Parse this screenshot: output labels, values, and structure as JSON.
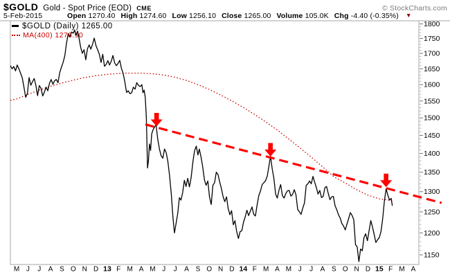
{
  "header": {
    "symbol": "$GOLD",
    "description": "Gold - Spot Price (EOD)",
    "exchange": "CME",
    "watermark": "© StockCharts.com",
    "date": "5-Feb-2015",
    "quote": [
      {
        "label": "Open",
        "value": "1270.40"
      },
      {
        "label": "High",
        "value": "1274.60"
      },
      {
        "label": "Low",
        "value": "1256.10"
      },
      {
        "label": "Close",
        "value": "1265.00"
      },
      {
        "label": "Volume",
        "value": "105.0K"
      },
      {
        "label": "Chg",
        "value": "-4.40 (-0.35%)"
      }
    ],
    "chg_direction_icon": "down-triangle",
    "chg_triangle_glyph": "▼",
    "chg_triangle_color": "#8b0000"
  },
  "legend": {
    "price_label": "$GOLD (Daily)",
    "price_value": "1265.00",
    "ma_label": "MA(400)",
    "ma_value": "1276.90"
  },
  "colors": {
    "price_line": "#000000",
    "ma_line": "#cc0000",
    "trendline": "#fe0000",
    "arrow": "#fe0000",
    "frame": "#a6a6a6",
    "tick": "#999999",
    "axis_text": "#000000",
    "watermark": "#7b7b7b"
  },
  "chart_data": {
    "type": "line",
    "title": "$GOLD Gold - Spot Price (EOD) CME",
    "y_scale": "log",
    "grid": "off",
    "legend_position": "top-left-inside",
    "y_axis": {
      "side": "right",
      "min": 1150,
      "max": 1800,
      "tick_step": 50,
      "ticks": [
        1800,
        1750,
        1700,
        1650,
        1600,
        1550,
        1500,
        1450,
        1400,
        1350,
        1300,
        1250,
        1200,
        1150
      ],
      "minor_tick_step": 10
    },
    "x_axis": {
      "start": "May 2012",
      "end": "Apr 2015",
      "months": [
        "M",
        "J",
        "J",
        "A",
        "S",
        "O",
        "N",
        "D",
        "13",
        "F",
        "M",
        "A",
        "M",
        "J",
        "J",
        "A",
        "S",
        "O",
        "N",
        "D",
        "14",
        "F",
        "M",
        "A",
        "M",
        "J",
        "J",
        "A",
        "S",
        "O",
        "N",
        "D",
        "15",
        "F",
        "M",
        "A"
      ],
      "year_indices": [
        8,
        20,
        32
      ]
    },
    "series": [
      {
        "name": "$GOLD (Daily)",
        "last": 1265.0,
        "color": "#000000",
        "style": "solid",
        "points": [
          [
            -0.55,
            1660
          ],
          [
            -0.4,
            1650
          ],
          [
            -0.25,
            1657
          ],
          [
            -0.1,
            1643
          ],
          [
            0.05,
            1662
          ],
          [
            0.2,
            1650
          ],
          [
            0.35,
            1636
          ],
          [
            0.5,
            1621
          ],
          [
            0.65,
            1592
          ],
          [
            0.8,
            1561
          ],
          [
            0.95,
            1573
          ],
          [
            1.1,
            1622
          ],
          [
            1.25,
            1598
          ],
          [
            1.4,
            1609
          ],
          [
            1.55,
            1619
          ],
          [
            1.7,
            1598
          ],
          [
            1.85,
            1566
          ],
          [
            2.0,
            1597
          ],
          [
            2.15,
            1589
          ],
          [
            2.3,
            1565
          ],
          [
            2.45,
            1577
          ],
          [
            2.6,
            1592
          ],
          [
            2.75,
            1581
          ],
          [
            2.9,
            1604
          ],
          [
            3.05,
            1616
          ],
          [
            3.2,
            1601
          ],
          [
            3.35,
            1612
          ],
          [
            3.5,
            1616
          ],
          [
            3.65,
            1606
          ],
          [
            3.8,
            1637
          ],
          [
            3.95,
            1655
          ],
          [
            4.1,
            1670
          ],
          [
            4.25,
            1692
          ],
          [
            4.4,
            1733
          ],
          [
            4.55,
            1766
          ],
          [
            4.7,
            1755
          ],
          [
            4.85,
            1772
          ],
          [
            5.0,
            1768
          ],
          [
            5.12,
            1779
          ],
          [
            5.25,
            1760
          ],
          [
            5.38,
            1775
          ],
          [
            5.5,
            1753
          ],
          [
            5.65,
            1720
          ],
          [
            5.8,
            1700
          ],
          [
            5.95,
            1712
          ],
          [
            6.1,
            1679
          ],
          [
            6.25,
            1715
          ],
          [
            6.4,
            1728
          ],
          [
            6.55,
            1714
          ],
          [
            6.7,
            1730
          ],
          [
            6.85,
            1751
          ],
          [
            7.0,
            1726
          ],
          [
            7.15,
            1712
          ],
          [
            7.3,
            1697
          ],
          [
            7.45,
            1670
          ],
          [
            7.6,
            1697
          ],
          [
            7.75,
            1658
          ],
          [
            7.9,
            1664
          ],
          [
            8.05,
            1676
          ],
          [
            8.2,
            1662
          ],
          [
            8.35,
            1674
          ],
          [
            8.5,
            1693
          ],
          [
            8.65,
            1669
          ],
          [
            8.8,
            1660
          ],
          [
            8.95,
            1667
          ],
          [
            9.1,
            1677
          ],
          [
            9.25,
            1651
          ],
          [
            9.4,
            1635
          ],
          [
            9.55,
            1609
          ],
          [
            9.7,
            1576
          ],
          [
            9.85,
            1581
          ],
          [
            10.0,
            1572
          ],
          [
            10.15,
            1575
          ],
          [
            10.3,
            1592
          ],
          [
            10.45,
            1586
          ],
          [
            10.6,
            1606
          ],
          [
            10.75,
            1598
          ],
          [
            10.9,
            1594
          ],
          [
            11.05,
            1600
          ],
          [
            11.15,
            1575
          ],
          [
            11.25,
            1583
          ],
          [
            11.35,
            1561
          ],
          [
            11.45,
            1501
          ],
          [
            11.55,
            1361
          ],
          [
            11.63,
            1380
          ],
          [
            11.72,
            1426
          ],
          [
            11.82,
            1408
          ],
          [
            11.92,
            1454
          ],
          [
            12.05,
            1467
          ],
          [
            12.18,
            1474
          ],
          [
            12.3,
            1480
          ],
          [
            12.45,
            1440
          ],
          [
            12.6,
            1412
          ],
          [
            12.75,
            1394
          ],
          [
            12.9,
            1387
          ],
          [
            13.05,
            1412
          ],
          [
            13.2,
            1402
          ],
          [
            13.35,
            1378
          ],
          [
            13.5,
            1340
          ],
          [
            13.65,
            1292
          ],
          [
            13.8,
            1235
          ],
          [
            13.93,
            1200
          ],
          [
            14.08,
            1224
          ],
          [
            14.22,
            1247
          ],
          [
            14.36,
            1285
          ],
          [
            14.5,
            1279
          ],
          [
            14.65,
            1297
          ],
          [
            14.8,
            1329
          ],
          [
            14.95,
            1313
          ],
          [
            15.1,
            1334
          ],
          [
            15.25,
            1312
          ],
          [
            15.4,
            1336
          ],
          [
            15.55,
            1377
          ],
          [
            15.7,
            1407
          ],
          [
            15.85,
            1420
          ],
          [
            16.0,
            1396
          ],
          [
            16.12,
            1412
          ],
          [
            16.27,
            1391
          ],
          [
            16.42,
            1364
          ],
          [
            16.57,
            1330
          ],
          [
            16.72,
            1316
          ],
          [
            16.87,
            1327
          ],
          [
            17.02,
            1287
          ],
          [
            17.17,
            1268
          ],
          [
            17.32,
            1316
          ],
          [
            17.47,
            1323
          ],
          [
            17.62,
            1350
          ],
          [
            17.77,
            1344
          ],
          [
            17.92,
            1324
          ],
          [
            18.07,
            1308
          ],
          [
            18.22,
            1287
          ],
          [
            18.37,
            1275
          ],
          [
            18.52,
            1287
          ],
          [
            18.67,
            1258
          ],
          [
            18.82,
            1243
          ],
          [
            18.97,
            1253
          ],
          [
            19.12,
            1219
          ],
          [
            19.27,
            1229
          ],
          [
            19.42,
            1203
          ],
          [
            19.57,
            1187
          ],
          [
            19.72,
            1203
          ],
          [
            19.87,
            1205
          ],
          [
            20.02,
            1225
          ],
          [
            20.17,
            1238
          ],
          [
            20.32,
            1254
          ],
          [
            20.47,
            1241
          ],
          [
            20.62,
            1251
          ],
          [
            20.77,
            1262
          ],
          [
            20.92,
            1244
          ],
          [
            21.07,
            1240
          ],
          [
            21.22,
            1267
          ],
          [
            21.37,
            1290
          ],
          [
            21.52,
            1302
          ],
          [
            21.67,
            1318
          ],
          [
            21.82,
            1323
          ],
          [
            21.97,
            1328
          ],
          [
            22.12,
            1340
          ],
          [
            22.26,
            1366
          ],
          [
            22.4,
            1392
          ],
          [
            22.55,
            1360
          ],
          [
            22.7,
            1334
          ],
          [
            22.85,
            1294
          ],
          [
            23.0,
            1284
          ],
          [
            23.15,
            1304
          ],
          [
            23.3,
            1318
          ],
          [
            23.45,
            1290
          ],
          [
            23.6,
            1284
          ],
          [
            23.75,
            1295
          ],
          [
            23.9,
            1302
          ],
          [
            24.05,
            1303
          ],
          [
            24.2,
            1289
          ],
          [
            24.35,
            1293
          ],
          [
            24.5,
            1305
          ],
          [
            24.65,
            1292
          ],
          [
            24.8,
            1256
          ],
          [
            24.95,
            1250
          ],
          [
            25.1,
            1244
          ],
          [
            25.25,
            1259
          ],
          [
            25.4,
            1272
          ],
          [
            25.55,
            1316
          ],
          [
            25.7,
            1320
          ],
          [
            25.85,
            1327
          ],
          [
            26.0,
            1320
          ],
          [
            26.15,
            1339
          ],
          [
            26.3,
            1324
          ],
          [
            26.45,
            1310
          ],
          [
            26.6,
            1294
          ],
          [
            26.75,
            1303
          ],
          [
            26.9,
            1285
          ],
          [
            27.05,
            1288
          ],
          [
            27.2,
            1310
          ],
          [
            27.35,
            1313
          ],
          [
            27.5,
            1295
          ],
          [
            27.65,
            1280
          ],
          [
            27.8,
            1287
          ],
          [
            27.95,
            1288
          ],
          [
            28.1,
            1265
          ],
          [
            28.25,
            1255
          ],
          [
            28.4,
            1243
          ],
          [
            28.55,
            1235
          ],
          [
            28.7,
            1222
          ],
          [
            28.85,
            1216
          ],
          [
            29.0,
            1207
          ],
          [
            29.15,
            1221
          ],
          [
            29.3,
            1234
          ],
          [
            29.45,
            1248
          ],
          [
            29.6,
            1241
          ],
          [
            29.75,
            1231
          ],
          [
            29.9,
            1173
          ],
          [
            30.05,
            1168
          ],
          [
            30.2,
            1135
          ],
          [
            30.35,
            1163
          ],
          [
            30.5,
            1159
          ],
          [
            30.65,
            1189
          ],
          [
            30.8,
            1198
          ],
          [
            30.95,
            1182
          ],
          [
            31.1,
            1205
          ],
          [
            31.25,
            1229
          ],
          [
            31.4,
            1214
          ],
          [
            31.55,
            1196
          ],
          [
            31.7,
            1178
          ],
          [
            31.85,
            1184
          ],
          [
            32.0,
            1189
          ],
          [
            32.15,
            1203
          ],
          [
            32.3,
            1234
          ],
          [
            32.45,
            1276
          ],
          [
            32.6,
            1307
          ],
          [
            32.75,
            1292
          ],
          [
            32.9,
            1279
          ],
          [
            33.05,
            1283
          ],
          [
            33.15,
            1265
          ]
        ]
      },
      {
        "name": "MA(400)",
        "last": 1276.9,
        "color": "#cc0000",
        "style": "dotted",
        "points": [
          [
            -0.55,
            1552
          ],
          [
            0,
            1556
          ],
          [
            1,
            1570
          ],
          [
            2,
            1583
          ],
          [
            3,
            1595
          ],
          [
            4,
            1605
          ],
          [
            5,
            1614
          ],
          [
            6,
            1622
          ],
          [
            7,
            1628
          ],
          [
            8,
            1632
          ],
          [
            9,
            1635
          ],
          [
            10,
            1636
          ],
          [
            11,
            1636
          ],
          [
            12,
            1634
          ],
          [
            13,
            1630
          ],
          [
            14,
            1623
          ],
          [
            15,
            1613
          ],
          [
            16,
            1600
          ],
          [
            17,
            1585
          ],
          [
            18,
            1568
          ],
          [
            19,
            1550
          ],
          [
            20,
            1531
          ],
          [
            21,
            1510
          ],
          [
            22,
            1488
          ],
          [
            23,
            1465
          ],
          [
            24,
            1440
          ],
          [
            25,
            1415
          ],
          [
            26,
            1390
          ],
          [
            27,
            1364
          ],
          [
            28,
            1338
          ],
          [
            29,
            1322
          ],
          [
            30,
            1305
          ],
          [
            31,
            1291
          ],
          [
            32,
            1282
          ],
          [
            33,
            1278
          ],
          [
            33.3,
            1277
          ]
        ]
      },
      {
        "name": "resistance-trendline",
        "color": "#fe0000",
        "style": "dashed-thick",
        "points": [
          [
            11.36,
            1481
          ],
          [
            37.5,
            1272
          ]
        ]
      }
    ],
    "annotations": {
      "down_arrows_at_months": [
        12.35,
        22.4,
        32.6
      ],
      "down_arrow_color": "#fe0000"
    }
  }
}
